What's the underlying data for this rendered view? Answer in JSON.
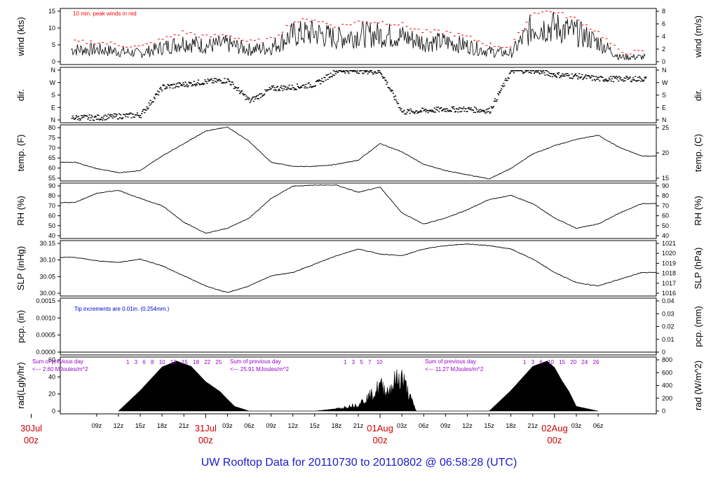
{
  "title": "UW Rooftop Data for 20110730  to  20110802 @ 06:58:28  (UTC)",
  "colors": {
    "title": "#1a1acc",
    "date_labels": "#cc0000",
    "peak": "#ff0000",
    "note_blue": "#0000cc",
    "rad_notes": "#9900cc"
  },
  "time_axis": {
    "hour_labels": [
      "09z",
      "12z",
      "15z",
      "18z",
      "21z",
      "03z",
      "06z",
      "09z",
      "12z",
      "15z",
      "18z",
      "21z",
      "03z",
      "06z",
      "09z",
      "12z",
      "15z",
      "18z",
      "21z",
      "03z",
      "06z"
    ],
    "date_labels": [
      {
        "day": "30Jul",
        "hour": "00z"
      },
      {
        "day": "31Jul",
        "hour": "00z"
      },
      {
        "day": "01Aug",
        "hour": "00z"
      },
      {
        "day": "02Aug",
        "hour": "00z"
      }
    ]
  },
  "chart_data": [
    {
      "type": "line",
      "panel": "wind",
      "ylabel_left": "wind (kts)",
      "ylabel_right": "wind (m/s)",
      "ylim_left": [
        0,
        15
      ],
      "ylim_right": [
        0,
        8
      ],
      "ticks_left": [
        "0",
        "5",
        "10",
        "15"
      ],
      "ticks_right": [
        "0",
        "2",
        "4",
        "6",
        "8"
      ],
      "annotation": "10 min. peak winds in red",
      "series": [
        {
          "x_hours": [
            9,
            12,
            15,
            18,
            21,
            24,
            27,
            30,
            33,
            36,
            39,
            42,
            45,
            48,
            51,
            54,
            57,
            60,
            63,
            66,
            69,
            72,
            75,
            78,
            81
          ],
          "values": [
            4,
            3.5,
            3,
            4.5,
            6,
            5,
            5.5,
            4,
            4.5,
            8,
            8.5,
            7,
            8,
            8,
            7.5,
            6,
            6,
            5,
            3.5,
            3,
            10,
            10,
            8.5,
            6,
            2
          ]
        }
      ]
    },
    {
      "type": "scatter",
      "panel": "dir",
      "ylabel_left": "dir.",
      "ylabel_right": "dir.",
      "ticks_left": [
        "N",
        "E",
        "S",
        "W",
        "N"
      ],
      "ticks_right": [
        "N",
        "E",
        "S",
        "W",
        "N"
      ],
      "series": [
        {
          "x_hours": [
            9,
            12,
            15,
            18,
            21,
            24,
            27,
            30,
            33,
            36,
            39,
            42,
            45,
            48,
            51,
            54,
            57,
            60,
            63,
            66,
            69,
            72,
            75,
            78,
            81
          ],
          "values": [
            20,
            30,
            40,
            240,
            260,
            280,
            290,
            140,
            230,
            240,
            260,
            360,
            360,
            350,
            60,
            70,
            80,
            80,
            70,
            360,
            360,
            330,
            320,
            300,
            300
          ]
        }
      ]
    },
    {
      "type": "line",
      "panel": "temp",
      "ylabel_left": "temp. (F)",
      "ylabel_right": "temp. (C)",
      "ylim_left": [
        53,
        80
      ],
      "ticks_left": [
        "55",
        "60",
        "65",
        "70",
        "75",
        "80"
      ],
      "ticks_right": [
        "15",
        "20",
        "25"
      ],
      "series": [
        {
          "x_hours": [
            6,
            9,
            12,
            15,
            18,
            21,
            24,
            27,
            30,
            33,
            36,
            39,
            42,
            45,
            48,
            51,
            54,
            57,
            60,
            63,
            66,
            69,
            72,
            75,
            78,
            81,
            84
          ],
          "values": [
            62,
            59,
            57,
            58,
            65,
            71,
            77,
            79,
            72,
            62,
            60,
            60,
            61,
            63,
            71,
            67,
            61,
            58,
            56,
            54,
            59,
            66,
            70,
            73,
            75,
            69,
            65
          ]
        }
      ]
    },
    {
      "type": "line",
      "panel": "rh",
      "ylabel_left": "RH (%)",
      "ylabel_right": "RH (%)",
      "ylim_left": [
        38,
        92
      ],
      "ticks_left": [
        "40",
        "50",
        "60",
        "70",
        "80",
        "90"
      ],
      "ticks_right": [
        "40",
        "50",
        "60",
        "70",
        "80",
        "90"
      ],
      "series": [
        {
          "x_hours": [
            6,
            9,
            12,
            15,
            18,
            21,
            24,
            27,
            30,
            33,
            36,
            39,
            42,
            45,
            48,
            51,
            54,
            57,
            60,
            63,
            66,
            69,
            72,
            75,
            78,
            81,
            84
          ],
          "values": [
            73,
            82,
            85,
            77,
            70,
            54,
            43,
            48,
            58,
            77,
            89,
            90,
            90,
            83,
            88,
            63,
            52,
            58,
            66,
            76,
            80,
            72,
            58,
            48,
            52,
            63,
            72
          ]
        }
      ]
    },
    {
      "type": "line",
      "panel": "slp",
      "ylabel_left": "SLP (inHg)",
      "ylabel_right": "SLP (hPa)",
      "ylim_left": [
        29.99,
        30.155
      ],
      "ticks_left": [
        "30.00",
        "30.05",
        "30.10",
        "30.15"
      ],
      "ticks_right": [
        "1016",
        "1017",
        "1018",
        "1019",
        "1020",
        "1021"
      ],
      "series": [
        {
          "x_hours": [
            6,
            9,
            12,
            15,
            18,
            21,
            24,
            27,
            30,
            33,
            36,
            39,
            42,
            45,
            48,
            51,
            54,
            57,
            60,
            63,
            66,
            69,
            72,
            75,
            78,
            81,
            84
          ],
          "values": [
            30.105,
            30.095,
            30.09,
            30.1,
            30.08,
            30.05,
            30.02,
            30.0,
            30.02,
            30.05,
            30.06,
            30.085,
            30.11,
            30.13,
            30.115,
            30.11,
            30.13,
            30.14,
            30.145,
            30.14,
            30.13,
            30.1,
            30.06,
            30.03,
            30.02,
            30.04,
            30.06
          ]
        }
      ]
    },
    {
      "type": "line",
      "panel": "pcp",
      "ylabel_left": "pcp. (in)",
      "ylabel_right": "pcp. (mm)",
      "ylim_left": [
        0,
        0.0017
      ],
      "ticks_left": [
        "0.0000",
        "0.0005",
        "0.0010",
        "0.0015"
      ],
      "ticks_right": [
        "0",
        "0.01",
        "0.02",
        "0.03",
        "0.04"
      ],
      "annotation": "Tip increments are 0.01in. (0.254mm.)",
      "series": [
        {
          "x_hours": [
            6,
            86
          ],
          "values": [
            0,
            0
          ]
        }
      ]
    },
    {
      "type": "area",
      "panel": "rad",
      "ylabel_left": "rad(Lgly/hr)",
      "ylabel_right": "rad (W/m^2)",
      "ticks_left": [
        "0",
        "20",
        "40",
        "60"
      ],
      "ticks_right": [
        "0",
        "200",
        "400",
        "600",
        "800"
      ],
      "ylim_right": [
        0,
        870
      ],
      "day_marks": [
        "1 3 6 8 10 13 15 18 22 25",
        "1 3 5 7 10",
        "1 3 6 10 15 20 24 26"
      ],
      "notes": [
        {
          "heading": "Sum of previous day",
          "value": "<--- 2.60 MJoules/m^2"
        },
        {
          "heading": "Sum of previous day",
          "value": "<--- 25.91 MJoules/m^2"
        },
        {
          "heading": "Sum of previous day",
          "value": "<--- 11.27 MJoules/m^2"
        }
      ],
      "series": [
        {
          "x_hours": [
            12,
            15,
            18,
            20,
            22,
            24,
            26,
            27,
            28,
            30,
            36,
            39,
            42,
            45,
            47,
            48,
            49,
            50,
            51,
            52,
            53,
            60,
            63,
            66,
            69,
            71,
            72,
            73,
            74,
            75,
            78
          ],
          "values": [
            0,
            350,
            750,
            850,
            760,
            500,
            330,
            200,
            80,
            0,
            0,
            0,
            40,
            120,
            300,
            450,
            350,
            520,
            600,
            280,
            0,
            0,
            0,
            350,
            760,
            850,
            740,
            520,
            330,
            80,
            0
          ]
        }
      ]
    }
  ]
}
